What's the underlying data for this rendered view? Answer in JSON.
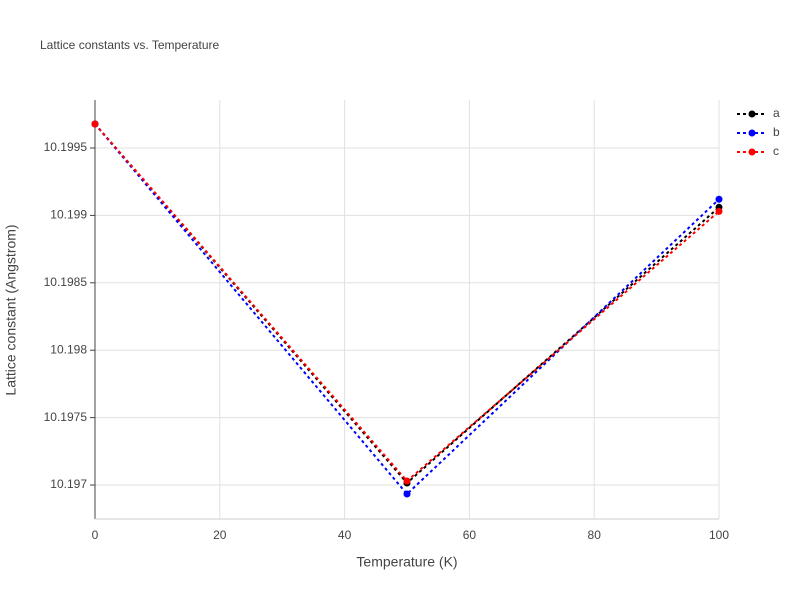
{
  "chart_data": {
    "type": "line",
    "title": "Lattice constants vs. Temperature",
    "x_label": "Temperature (K)",
    "y_label": "Lattice constant (Angstrom)",
    "x": [
      0,
      50,
      100
    ],
    "series": [
      {
        "name": "a",
        "color": "#000000",
        "values": [
          10.199678,
          10.197015,
          10.19906
        ]
      },
      {
        "name": "b",
        "color": "#0000ff",
        "values": [
          10.199678,
          10.196933,
          10.19912
        ]
      },
      {
        "name": "c",
        "color": "#ff0000",
        "values": [
          10.199678,
          10.19703,
          10.19903
        ]
      }
    ],
    "xlim": [
      0,
      100
    ],
    "xticks": [
      0,
      20,
      40,
      60,
      80,
      100
    ],
    "ylim": [
      10.196748,
      10.199856
    ],
    "yticks": [
      10.197,
      10.1975,
      10.198,
      10.1985,
      10.199,
      10.1995
    ],
    "grid": true,
    "legend": "top-right"
  }
}
